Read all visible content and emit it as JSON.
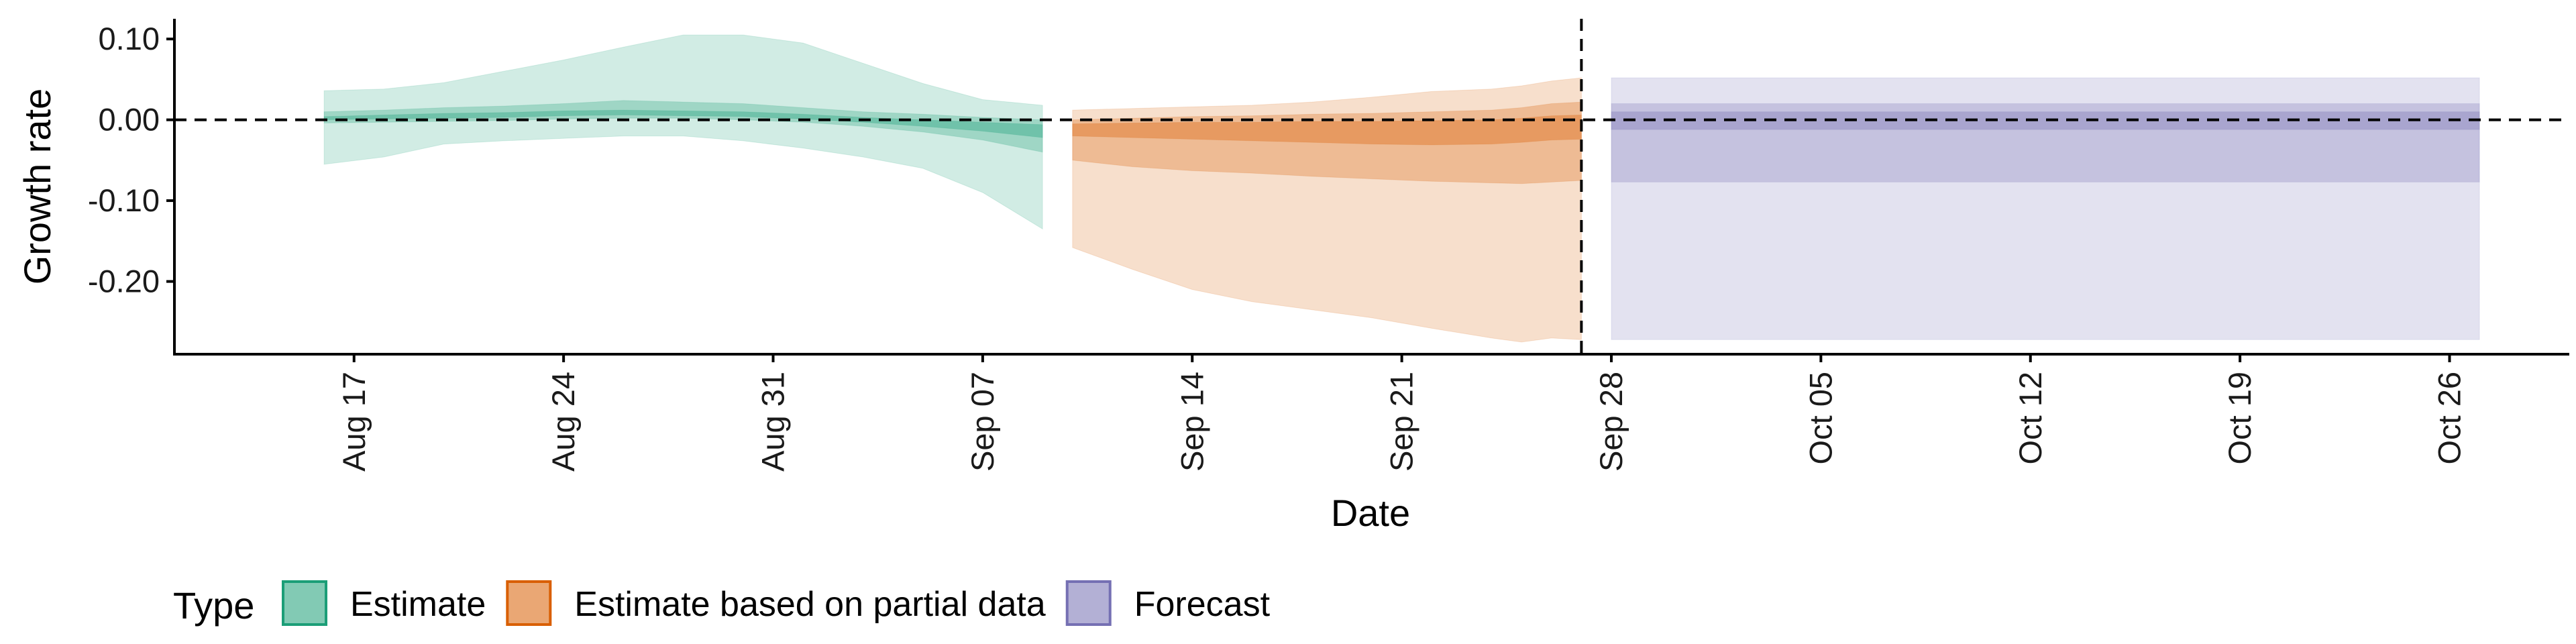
{
  "chart_data": {
    "type": "area",
    "xlabel": "Date",
    "ylabel": "Growth rate",
    "ylim": [
      -0.29,
      0.125
    ],
    "xlim": [
      "2020-08-11",
      "2020-10-30"
    ],
    "x_ticks": [
      "2020-08-17",
      "2020-08-24",
      "2020-08-31",
      "2020-09-07",
      "2020-09-14",
      "2020-09-21",
      "2020-09-28",
      "2020-10-05",
      "2020-10-12",
      "2020-10-19",
      "2020-10-26"
    ],
    "x_tick_labels": [
      "Aug 17",
      "Aug 24",
      "Aug 31",
      "Sep 07",
      "Sep 14",
      "Sep 21",
      "Sep 28",
      "Oct 05",
      "Oct 12",
      "Oct 19",
      "Oct 26"
    ],
    "y_ticks": [
      0.1,
      0.0,
      -0.1,
      -0.2
    ],
    "y_tick_labels": [
      "0.10",
      "0.00",
      "-0.10",
      "-0.20"
    ],
    "reference_lines": {
      "horizontal_y": 0.0,
      "vertical_x": "2020-09-27"
    },
    "grid": false,
    "legend": {
      "position": "bottom-left",
      "title": "Type",
      "items": [
        {
          "label": "Estimate",
          "color": "#1b9e77"
        },
        {
          "label": "Estimate based on partial data",
          "color": "#d95f02"
        },
        {
          "label": "Forecast",
          "color": "#7570b3"
        }
      ]
    },
    "series": [
      {
        "name": "Estimate",
        "color": "#1b9e77",
        "x": [
          "2020-08-16",
          "2020-08-18",
          "2020-08-20",
          "2020-08-22",
          "2020-08-24",
          "2020-08-26",
          "2020-08-28",
          "2020-08-30",
          "2020-09-01",
          "2020-09-03",
          "2020-09-05",
          "2020-09-07",
          "2020-09-09"
        ],
        "outer_upper": [
          0.036,
          0.038,
          0.046,
          0.06,
          0.074,
          0.09,
          0.105,
          0.105,
          0.095,
          0.07,
          0.045,
          0.025,
          0.018
        ],
        "outer_lower": [
          -0.055,
          -0.046,
          -0.03,
          -0.026,
          -0.023,
          -0.02,
          -0.02,
          -0.026,
          -0.035,
          -0.046,
          -0.06,
          -0.09,
          -0.135
        ],
        "mid_upper": [
          0.01,
          0.012,
          0.015,
          0.017,
          0.02,
          0.024,
          0.022,
          0.02,
          0.015,
          0.01,
          0.007,
          0.003,
          0.0
        ],
        "mid_lower": [
          -0.004,
          -0.003,
          -0.002,
          -0.001,
          0.001,
          0.002,
          0.002,
          0.0,
          -0.003,
          -0.008,
          -0.015,
          -0.025,
          -0.04
        ],
        "inner_upper": [
          0.004,
          0.006,
          0.008,
          0.009,
          0.011,
          0.012,
          0.011,
          0.01,
          0.007,
          0.003,
          0.0,
          -0.003,
          -0.006
        ],
        "inner_lower": [
          0.0,
          0.001,
          0.002,
          0.003,
          0.005,
          0.006,
          0.005,
          0.004,
          0.001,
          -0.003,
          -0.008,
          -0.014,
          -0.022
        ]
      },
      {
        "name": "Estimate based on partial data",
        "color": "#d95f02",
        "x": [
          "2020-09-10",
          "2020-09-12",
          "2020-09-14",
          "2020-09-16",
          "2020-09-18",
          "2020-09-20",
          "2020-09-22",
          "2020-09-24",
          "2020-09-25",
          "2020-09-26",
          "2020-09-27"
        ],
        "outer_upper": [
          0.012,
          0.014,
          0.016,
          0.018,
          0.022,
          0.028,
          0.035,
          0.038,
          0.042,
          0.048,
          0.052
        ],
        "outer_lower": [
          -0.158,
          -0.185,
          -0.21,
          -0.225,
          -0.235,
          -0.245,
          -0.258,
          -0.27,
          -0.275,
          -0.27,
          -0.272
        ],
        "mid_upper": [
          0.0,
          0.002,
          0.004,
          0.005,
          0.007,
          0.008,
          0.01,
          0.012,
          0.015,
          0.02,
          0.022
        ],
        "mid_lower": [
          -0.05,
          -0.058,
          -0.063,
          -0.066,
          -0.07,
          -0.073,
          -0.076,
          -0.078,
          -0.079,
          -0.077,
          -0.075
        ],
        "inner_upper": [
          -0.005,
          -0.004,
          -0.003,
          -0.003,
          -0.002,
          -0.002,
          -0.001,
          0.0,
          0.002,
          0.005,
          0.006
        ],
        "inner_lower": [
          -0.02,
          -0.022,
          -0.024,
          -0.026,
          -0.028,
          -0.03,
          -0.031,
          -0.03,
          -0.028,
          -0.025,
          -0.024
        ]
      },
      {
        "name": "Forecast",
        "color": "#7570b3",
        "x": [
          "2020-09-28",
          "2020-10-27"
        ],
        "outer_upper": [
          0.052,
          0.052
        ],
        "outer_lower": [
          -0.272,
          -0.272
        ],
        "mid_upper": [
          0.02,
          0.02
        ],
        "mid_lower": [
          -0.077,
          -0.077
        ],
        "inner_upper": [
          0.01,
          0.01
        ],
        "inner_lower": [
          -0.012,
          -0.012
        ]
      }
    ]
  }
}
